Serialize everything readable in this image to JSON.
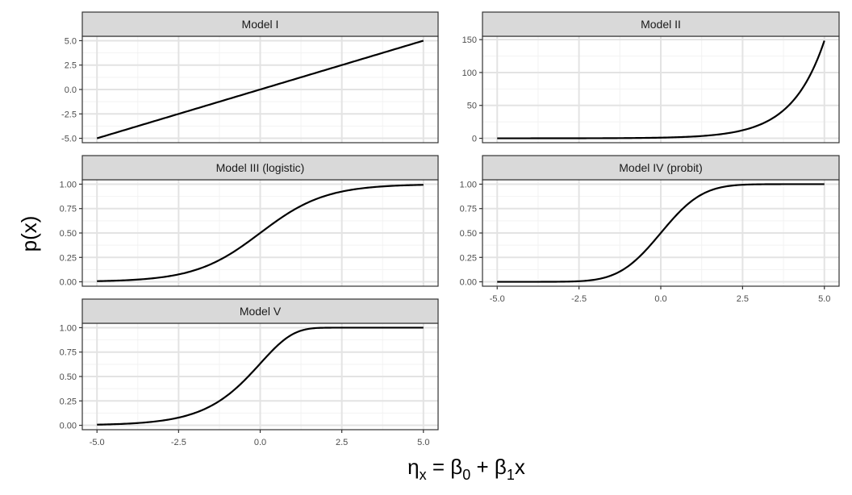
{
  "chart_data": {
    "type": "line",
    "layout": "facet_wrap",
    "xlabel": "ηx = β0 + β1x",
    "xlabel_parts": {
      "eta": "η",
      "eta_sub": "x",
      "eq": " = ",
      "b0": "β",
      "b0_sub": "0",
      "plus": " + ",
      "b1": "β",
      "b1_sub": "1",
      "x": "x"
    },
    "ylabel": "p(x)",
    "x_ticks": [
      -5.0,
      -2.5,
      0.0,
      2.5,
      5.0
    ],
    "x_tick_labels": [
      "-5.0",
      "-2.5",
      "0.0",
      "2.5",
      "5.0"
    ],
    "xlim": [
      -5,
      5
    ],
    "grid": true,
    "line_color": "#000000",
    "strip_color": "#d9d9d9",
    "panels": [
      {
        "title": "Model I",
        "function": "identity",
        "ylim": [
          -5,
          5
        ],
        "y_ticks": [
          -5,
          -2.5,
          0,
          2.5,
          5
        ],
        "y_tick_labels": [
          "-5.0",
          "-2.5",
          "0.0",
          "2.5",
          "5.0"
        ],
        "x": [
          -5,
          -2.5,
          0,
          2.5,
          5
        ],
        "y": [
          -5,
          -2.5,
          0,
          2.5,
          5
        ]
      },
      {
        "title": "Model II",
        "function": "exp",
        "ylim": [
          0,
          148.4
        ],
        "y_ticks": [
          0,
          50,
          100,
          150
        ],
        "y_tick_labels": [
          "0",
          "50",
          "100",
          "150"
        ],
        "x": [
          -5,
          -2.5,
          0,
          2.5,
          3.5,
          4,
          4.5,
          5
        ],
        "y": [
          0.0067,
          0.082,
          1,
          12.18,
          33.1,
          54.6,
          90.0,
          148.4
        ]
      },
      {
        "title": "Model III (logistic)",
        "function": "logistic",
        "ylim": [
          0,
          1
        ],
        "y_ticks": [
          0,
          0.25,
          0.5,
          0.75,
          1
        ],
        "y_tick_labels": [
          "0.00",
          "0.25",
          "0.50",
          "0.75",
          "1.00"
        ],
        "x": [
          -5,
          -2.5,
          0,
          2.5,
          5
        ],
        "y": [
          0.0067,
          0.0759,
          0.5,
          0.9241,
          0.9933
        ]
      },
      {
        "title": "Model IV (probit)",
        "function": "probit",
        "ylim": [
          0,
          1
        ],
        "y_ticks": [
          0,
          0.25,
          0.5,
          0.75,
          1
        ],
        "y_tick_labels": [
          "0.00",
          "0.25",
          "0.50",
          "0.75",
          "1.00"
        ],
        "x": [
          -5,
          -2.5,
          -1,
          0,
          1,
          2.5,
          5
        ],
        "y": [
          0.0,
          0.0062,
          0.1587,
          0.5,
          0.8413,
          0.9938,
          1.0
        ]
      },
      {
        "title": "Model V",
        "function": "cloglog",
        "ylim": [
          0,
          1
        ],
        "y_ticks": [
          0,
          0.25,
          0.5,
          0.75,
          1
        ],
        "y_tick_labels": [
          "0.00",
          "0.25",
          "0.50",
          "0.75",
          "1.00"
        ],
        "x": [
          -5,
          -2.5,
          0,
          1,
          2.5,
          5
        ],
        "y": [
          0.0067,
          0.0788,
          0.6321,
          0.934,
          1.0,
          1.0
        ]
      }
    ]
  }
}
